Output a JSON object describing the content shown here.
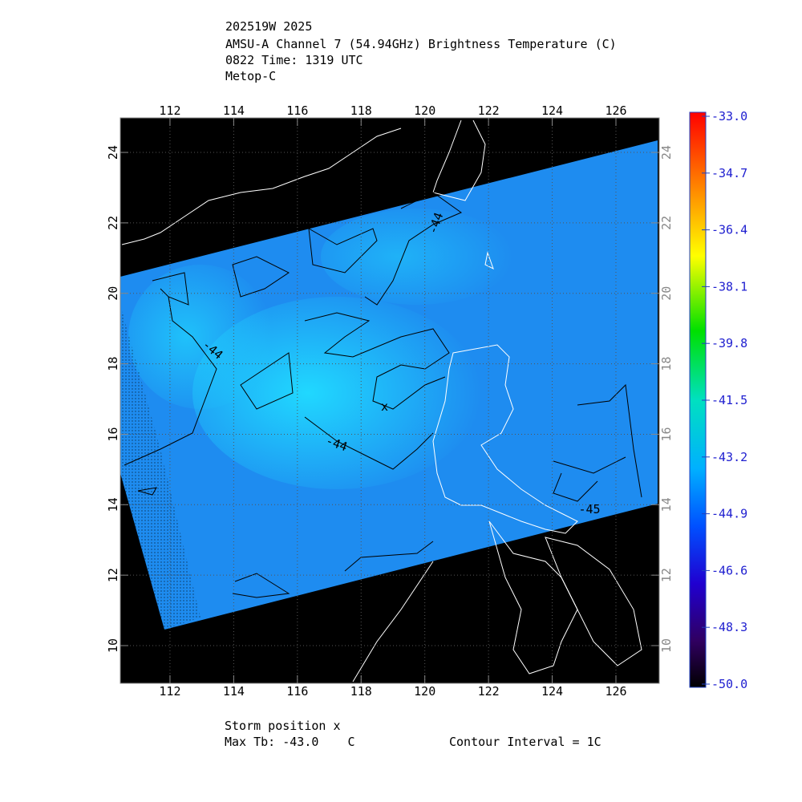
{
  "title_lines": [
    "202519W 2025",
    "AMSU-A Channel 7 (54.94GHz) Brightness Temperature (C)",
    "0822 Time: 1319 UTC",
    "Metop-C"
  ],
  "map": {
    "xlim": [
      110.44,
      127.36
    ],
    "ylim": [
      8.93,
      24.98
    ],
    "xticks": [
      112,
      114,
      116,
      118,
      120,
      122,
      124,
      126
    ],
    "yticks": [
      10,
      12,
      14,
      16,
      18,
      20,
      22,
      24
    ],
    "contour_labels": [
      "-44",
      "-44",
      "-44",
      "-45"
    ],
    "storm_marker": "x"
  },
  "colorbar": {
    "lim": [
      -50,
      -33
    ],
    "ticks": [
      {
        "value": -33,
        "label": "-33.0"
      },
      {
        "value": -34.7,
        "label": "-34.7"
      },
      {
        "value": -36.4,
        "label": "-36.4"
      },
      {
        "value": -38.1,
        "label": "-38.1"
      },
      {
        "value": -39.8,
        "label": "-39.8"
      },
      {
        "value": -41.5,
        "label": "-41.5"
      },
      {
        "value": -43.2,
        "label": "-43.2"
      },
      {
        "value": -44.9,
        "label": "-44.9"
      },
      {
        "value": -46.6,
        "label": "-46.6"
      },
      {
        "value": -48.3,
        "label": "-48.3"
      },
      {
        "value": -50,
        "label": "-50.0"
      }
    ]
  },
  "footer": {
    "storm": "Storm position x",
    "max_tb": "Max Tb: -43.0    C",
    "contour_interval": "Contour Interval = 1C"
  }
}
